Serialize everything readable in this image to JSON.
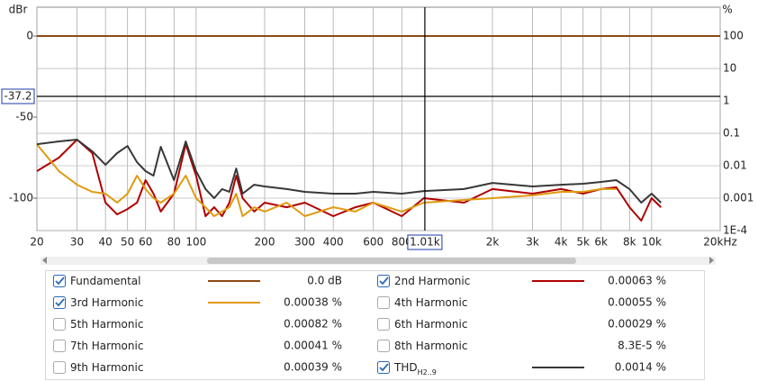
{
  "chart_data": {
    "type": "line",
    "y_label": "dBr",
    "y2_label": "%",
    "x": [
      20,
      25,
      30,
      35,
      40,
      45,
      50,
      55,
      60,
      65,
      70,
      80,
      90,
      100,
      110,
      120,
      130,
      140,
      150,
      160,
      180,
      200,
      250,
      300,
      400,
      500,
      600,
      800,
      1000,
      1500,
      2000,
      3000,
      4000,
      5000,
      6000,
      7000,
      8000,
      9000,
      10000,
      11000,
      15000,
      20000
    ],
    "xlim": [
      20,
      20000
    ],
    "log_x": true,
    "xticks": [
      20,
      30,
      40,
      50,
      60,
      80,
      100,
      200,
      300,
      400,
      600,
      800,
      {
        "value": 2000,
        "label": "2k"
      },
      {
        "value": 3000,
        "label": "3k"
      },
      {
        "value": 4000,
        "label": "4k"
      },
      {
        "value": 5000,
        "label": "5k"
      },
      {
        "value": 6000,
        "label": "6k"
      },
      {
        "value": 8000,
        "label": "8k"
      },
      {
        "value": 10000,
        "label": "10k"
      },
      {
        "value": 20000,
        "label": "20kHz"
      }
    ],
    "ylim": [
      -120,
      17.8
    ],
    "yticks": [
      0,
      -50,
      -100
    ],
    "y2lim": [
      0.0001,
      780
    ],
    "y2_log": true,
    "y2ticks": [
      100,
      10,
      1,
      0.1,
      0.01,
      0.001,
      {
        "value": 0.0001,
        "label": "1E-4"
      }
    ],
    "grid": true,
    "cursor": {
      "x": {
        "value": 1010,
        "label": "1.01k"
      },
      "y": -37.2
    },
    "series": [
      {
        "name": "Fundamental",
        "color": "#8b4a14",
        "checked": true,
        "readout": {
          "value": 0,
          "label": "0.0 dB"
        },
        "values": [
          0,
          0,
          0,
          0,
          0,
          0,
          0,
          0,
          0,
          0,
          0,
          0,
          0,
          0,
          0,
          0,
          0,
          0,
          0,
          0,
          0,
          0,
          0,
          0,
          0,
          0,
          0,
          0,
          0,
          0,
          0,
          0,
          0,
          0,
          0,
          0,
          0,
          0,
          0,
          0,
          0,
          0
        ]
      },
      {
        "name": "2nd Harmonic",
        "color": "#b00000",
        "checked": true,
        "readout": {
          "value": 0.00063,
          "label": "0.00063 %"
        },
        "values": [
          -83.3,
          -75.0,
          -63.9,
          -72.2,
          -102.8,
          -110,
          -106.7,
          -102.8,
          -88.9,
          -97.2,
          -108.3,
          -97.2,
          -66.7,
          -86.1,
          -111.1,
          -105.6,
          -111.1,
          -102.8,
          -86.1,
          -100,
          -108.3,
          -102.8,
          -105.6,
          -102.8,
          -111.1,
          -105.6,
          -102.8,
          -111.1,
          -100,
          -102.8,
          -94.4,
          -97.2,
          -94.4,
          -97.2,
          -94.4,
          -93.3,
          -105.6,
          -113.9,
          -100,
          -105.6,
          null,
          null
        ]
      },
      {
        "name": "3rd Harmonic",
        "color": "#e09a10",
        "checked": true,
        "readout": {
          "value": 0.00038,
          "label": "0.00038 %"
        },
        "values": [
          -66.7,
          -83.3,
          -91.7,
          -96.1,
          -97.2,
          -102.8,
          -97.2,
          -86.1,
          -94.4,
          -100,
          -102.8,
          -97.2,
          -86.1,
          -100,
          -105.6,
          -111.1,
          -108.3,
          -105.6,
          -97.2,
          -111.1,
          -105.6,
          -108.3,
          -102.8,
          -111.1,
          -105.6,
          -108.3,
          -102.8,
          -108.3,
          -102.8,
          -101.1,
          -100,
          -98.3,
          -96.1,
          -96.1,
          -94.4,
          -94.4,
          null,
          null,
          null,
          null,
          null,
          null
        ]
      },
      {
        "name": "4th Harmonic",
        "color": "#e6b800",
        "checked": false,
        "readout": {
          "value": 0.00055,
          "label": "0.00055 %"
        }
      },
      {
        "name": "5th Harmonic",
        "color": "#2e8b2e",
        "checked": false,
        "readout": {
          "value": 0.00082,
          "label": "0.00082 %"
        }
      },
      {
        "name": "6th Harmonic",
        "color": "#3a5fa0",
        "checked": false,
        "readout": {
          "value": 0.00029,
          "label": "0.00029 %"
        }
      },
      {
        "name": "7th Harmonic",
        "color": "#b030b0",
        "checked": false,
        "readout": {
          "value": 0.00041,
          "label": "0.00041 %"
        }
      },
      {
        "name": "8th Harmonic",
        "color": "#707070",
        "checked": false,
        "readout": {
          "value": 8.3e-05,
          "label": "8.3E-5 %"
        }
      },
      {
        "name": "9th Harmonic",
        "color": "#1aa0a8",
        "checked": false,
        "readout": {
          "value": 0.00039,
          "label": "0.00039 %"
        }
      },
      {
        "name": "THD",
        "name_sub": "H2..9",
        "color": "#383838",
        "checked": true,
        "readout": {
          "value": 0.0014,
          "label": "0.0014 %"
        },
        "values": [
          -66.7,
          -65.0,
          -63.9,
          -71.1,
          -79.4,
          -72.2,
          -67.8,
          -77.8,
          -83.3,
          -86.1,
          -68.3,
          -88.9,
          -65.0,
          -83.3,
          -94.4,
          -100,
          -94.4,
          -96.1,
          -81.7,
          -97.2,
          -91.7,
          -92.8,
          -94.4,
          -96.1,
          -97.2,
          -97.2,
          -96.1,
          -97.2,
          -95.6,
          -94.4,
          -90.6,
          -92.8,
          -91.7,
          -91.1,
          -90.0,
          -88.9,
          -94.4,
          -102.8,
          -97.2,
          -102.8,
          null,
          null
        ]
      }
    ]
  }
}
